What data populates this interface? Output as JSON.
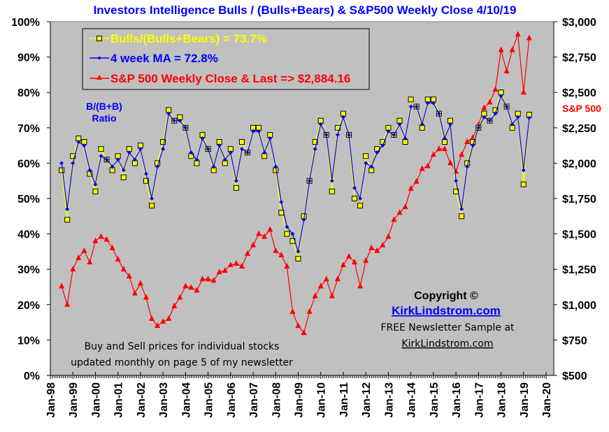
{
  "chart_data": {
    "type": "line",
    "title": "Investors Intelligence Bulls / (Bulls+Bears) & S&P500 Weekly Close 4/10/19",
    "xlabel": "",
    "ylabel_left": "B/(B+B) Ratio",
    "ylabel_right": "S&P 500",
    "ylim_left": [
      0,
      100
    ],
    "ylim_right": [
      500,
      3000
    ],
    "xlim": [
      "Jan-98",
      "Jan-20"
    ],
    "grid": false,
    "legend_placement": "top-left",
    "x_tick_labels": [
      "Jan-98",
      "Jan-99",
      "Jan-00",
      "Jan-01",
      "Jan-02",
      "Jan-03",
      "Jan-04",
      "Jan-05",
      "Jan-06",
      "Jan-07",
      "Jan-08",
      "Jan-09",
      "Jan-10",
      "Jan-11",
      "Jan-12",
      "Jan-13",
      "Jan-14",
      "Jan-15",
      "Jan-16",
      "Jan-17",
      "Jan-18",
      "Jan-19",
      "Jan-20"
    ],
    "y_tick_labels_left": [
      "0%",
      "10%",
      "20%",
      "30%",
      "40%",
      "50%",
      "60%",
      "70%",
      "80%",
      "90%",
      "100%"
    ],
    "y_tick_labels_right": [
      "$500",
      "$750",
      "$1,000",
      "$1,250",
      "$1,500",
      "$1,750",
      "$2,000",
      "$2,250",
      "$2,500",
      "$2,750",
      "$3,000"
    ],
    "x": [
      1998.5,
      1998.75,
      1999.0,
      1999.25,
      1999.5,
      1999.75,
      2000.0,
      2000.25,
      2000.5,
      2000.75,
      2001.0,
      2001.25,
      2001.5,
      2001.75,
      2002.0,
      2002.25,
      2002.5,
      2002.75,
      2003.0,
      2003.25,
      2003.5,
      2003.75,
      2004.0,
      2004.25,
      2004.5,
      2004.75,
      2005.0,
      2005.25,
      2005.5,
      2005.75,
      2006.0,
      2006.25,
      2006.5,
      2006.75,
      2007.0,
      2007.25,
      2007.5,
      2007.75,
      2008.0,
      2008.25,
      2008.5,
      2008.75,
      2009.0,
      2009.25,
      2009.5,
      2009.75,
      2010.0,
      2010.25,
      2010.5,
      2010.75,
      2011.0,
      2011.25,
      2011.5,
      2011.75,
      2012.0,
      2012.25,
      2012.5,
      2012.75,
      2013.0,
      2013.25,
      2013.5,
      2013.75,
      2014.0,
      2014.25,
      2014.5,
      2014.75,
      2015.0,
      2015.25,
      2015.5,
      2015.75,
      2016.0,
      2016.25,
      2016.5,
      2016.75,
      2017.0,
      2017.25,
      2017.5,
      2017.75,
      2018.0,
      2018.25,
      2018.5,
      2018.75,
      2019.0,
      2019.25
    ],
    "series": [
      {
        "name": "Bulls/(Bulls+Bears) = 73.7%",
        "color": "#ffff00",
        "marker": "square",
        "values": [
          58,
          44,
          62,
          67,
          66,
          57,
          52,
          64,
          61,
          58,
          62,
          56,
          64,
          60,
          65,
          55,
          48,
          60,
          66,
          75,
          72,
          73,
          70,
          62,
          60,
          68,
          64,
          58,
          66,
          60,
          64,
          53,
          66,
          63,
          70,
          70,
          62,
          68,
          58,
          46,
          40,
          38,
          33,
          45,
          55,
          66,
          72,
          68,
          52,
          70,
          74,
          68,
          50,
          48,
          62,
          58,
          64,
          66,
          70,
          68,
          72,
          66,
          78,
          76,
          70,
          78,
          78,
          74,
          66,
          72,
          52,
          45,
          60,
          66,
          70,
          74,
          72,
          75,
          80,
          76,
          70,
          74,
          54,
          73.7
        ]
      },
      {
        "name": "4 week MA = 72.8%",
        "color": "#0000ff",
        "marker": "diamond",
        "values": [
          60,
          47,
          60,
          66,
          65,
          58,
          54,
          62,
          61,
          59,
          61,
          58,
          63,
          61,
          64,
          57,
          50,
          59,
          64,
          74,
          72,
          72,
          70,
          63,
          61,
          67,
          64,
          59,
          65,
          61,
          63,
          55,
          64,
          63,
          69,
          69,
          63,
          67,
          59,
          49,
          42,
          40,
          35,
          44,
          55,
          64,
          71,
          68,
          55,
          68,
          73,
          68,
          53,
          50,
          60,
          59,
          63,
          65,
          69,
          68,
          71,
          67,
          76,
          76,
          71,
          77,
          77,
          74,
          67,
          71,
          55,
          47,
          59,
          65,
          70,
          73,
          72,
          74,
          79,
          76,
          71,
          73,
          58,
          72.8
        ]
      },
      {
        "name": "S&P 500 Weekly Close & Last => $2,884.16",
        "color": "#ff0000",
        "marker": "triangle",
        "values": [
          1130,
          1000,
          1250,
          1330,
          1380,
          1300,
          1450,
          1480,
          1460,
          1400,
          1320,
          1250,
          1200,
          1080,
          1150,
          1050,
          900,
          850,
          880,
          900,
          990,
          1050,
          1130,
          1120,
          1100,
          1180,
          1180,
          1170,
          1230,
          1240,
          1280,
          1290,
          1270,
          1360,
          1420,
          1500,
          1480,
          1530,
          1380,
          1350,
          1270,
          950,
          850,
          800,
          950,
          1060,
          1130,
          1180,
          1060,
          1180,
          1280,
          1340,
          1300,
          1130,
          1310,
          1400,
          1380,
          1420,
          1480,
          1600,
          1650,
          1690,
          1820,
          1870,
          1960,
          1980,
          2060,
          2100,
          2100,
          2000,
          1940,
          2060,
          2150,
          2180,
          2270,
          2390,
          2430,
          2520,
          2800,
          2650,
          2800,
          2910,
          2500,
          2884.16
        ]
      }
    ],
    "annotations": {
      "ratio_label_line1": "B/(B+B)",
      "ratio_label_line2": "Ratio",
      "sp_label": "S&P 500",
      "copyright": "Copyright ©",
      "site_link": "KirkLindstrom.com",
      "newsletter_line": "FREE Newsletter Sample at",
      "newsletter_link": "KirkLindstrom.com",
      "buysell_line1": "Buy and Sell prices for individual stocks",
      "buysell_line2": "updated monthly on page 5 of my newsletter"
    }
  }
}
